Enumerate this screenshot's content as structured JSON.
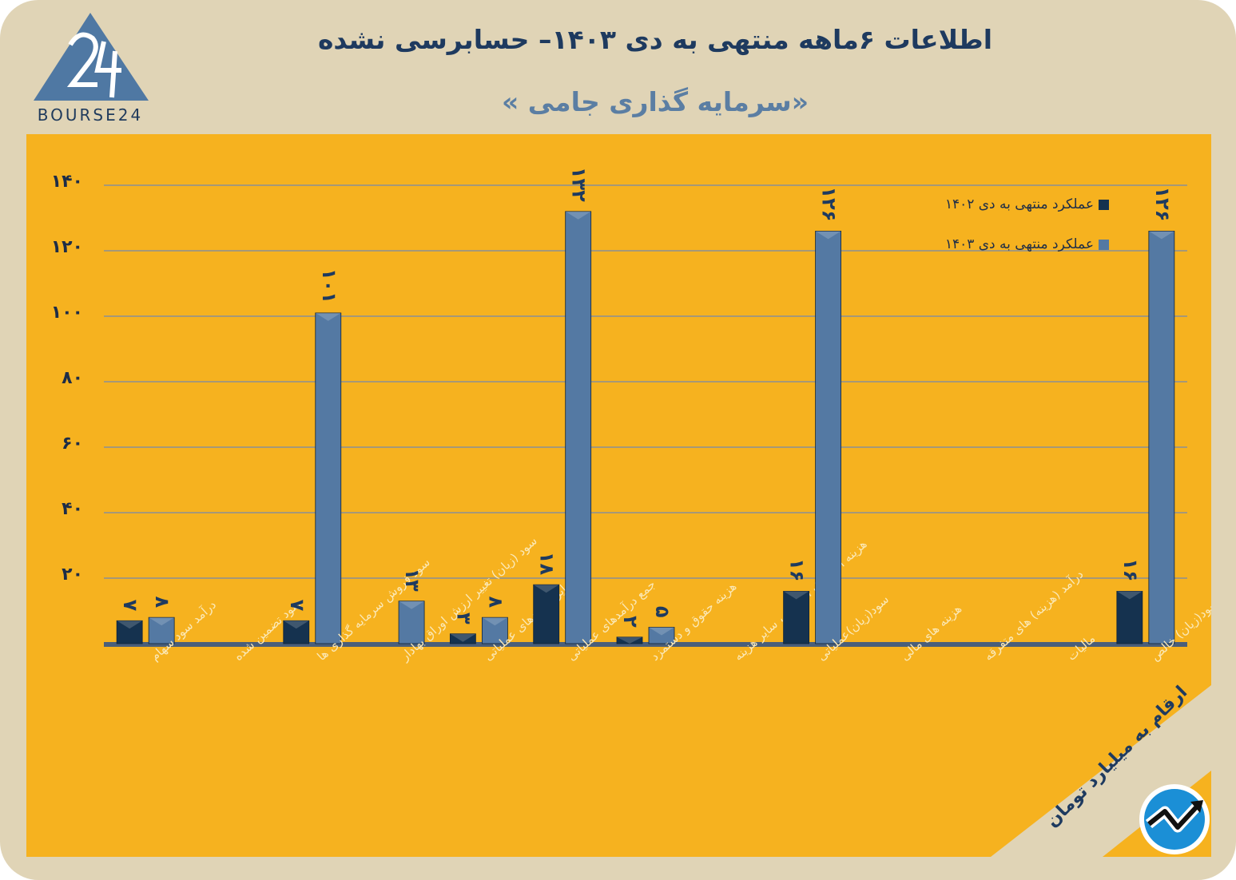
{
  "header": {
    "title": "اطلاعات ۶ماهه منتهی به دی ۱۴۰۳– حسابرسی نشده",
    "subtitle": "«سرمایه گذاری جامی »",
    "logo_text": "BOURSE24",
    "unit_note": "ارقام به میلیارد تومان"
  },
  "colors": {
    "frame": "#e0d4b6",
    "panel": "#f6b21f",
    "series_1402": "#15324f",
    "series_1403": "#5479a3",
    "title": "#1e3a5f",
    "grid": "#8a8f96"
  },
  "icons": {
    "logo": "bourse24-triangle-logo",
    "brand": "trend-arrow-circle-icon"
  },
  "chart_data": {
    "type": "bar",
    "ylim": [
      0,
      140
    ],
    "yticks": [
      20,
      40,
      60,
      80,
      100,
      120,
      140
    ],
    "ytick_labels": [
      "۲۰",
      "۴۰",
      "۶۰",
      "۸۰",
      "۱۰۰",
      "۱۲۰",
      "۱۴۰"
    ],
    "grid": true,
    "legend_position": "top-right",
    "categories": [
      "درآمد سود سهام",
      "سود تضمین شده",
      "سود فروش سرمایه گذاری ها",
      "سود (زیان) تغییر ارزش اوراق بهادار",
      "سایر درامدهای عملیاتی",
      "جمع درآمدهای عملیاتی",
      "هزینه حقوق و دستمزد",
      "هزینه استهلاک ، اجاره ، سایر هزینه",
      "سود(زیان)عملیاتی",
      "هزینه های مالی",
      "درآمد (هزینه) های متفرقه",
      "مالیات",
      "سود(زیان) خالص"
    ],
    "series": [
      {
        "name": "عملکرد منتهی به دی ۱۴۰۲",
        "values": [
          7,
          0,
          7,
          0,
          3,
          18,
          2,
          0,
          16,
          0,
          0,
          0,
          16
        ],
        "labels": [
          "۷",
          "",
          "۷",
          "",
          "۳",
          "۱۸",
          "۲",
          "",
          "۱۶",
          "",
          "",
          "",
          "۱۶"
        ]
      },
      {
        "name": "عملکرد منتهی به دی ۱۴۰۳",
        "values": [
          8,
          0,
          101,
          13,
          8,
          132,
          5,
          0,
          126,
          0,
          0,
          0,
          126
        ],
        "labels": [
          "۸",
          "",
          "۱۰۱",
          "۱۳",
          "۸",
          "۱۳۲",
          "۵",
          "",
          "۱۲۶",
          "",
          "",
          "",
          "۱۲۶"
        ]
      }
    ]
  }
}
